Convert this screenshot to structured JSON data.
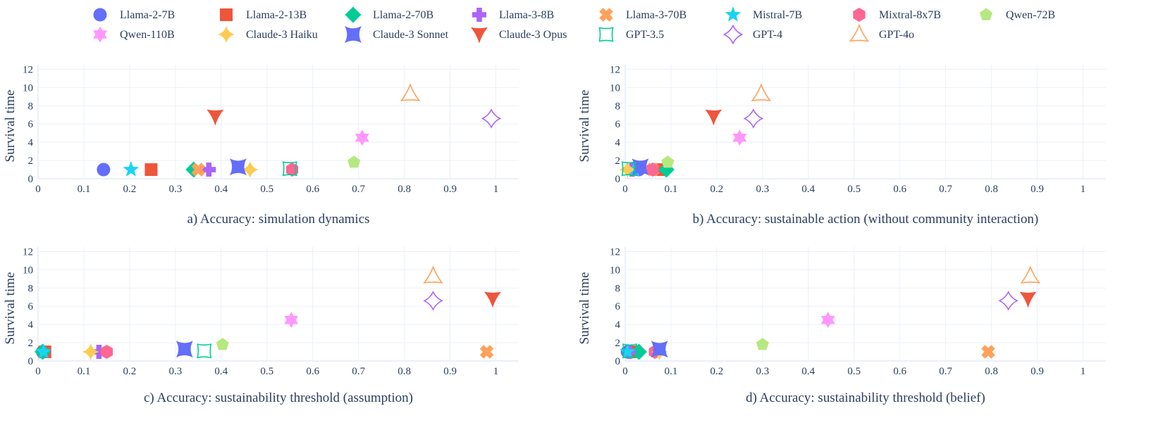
{
  "colors": {
    "Llama-2-7B": "#636efa",
    "Llama-2-13B": "#ef553b",
    "Llama-2-70B": "#00cc96",
    "Llama-3-8B": "#ab63fa",
    "Llama-3-70B": "#ffa15a",
    "Mistral-7B": "#19d3f3",
    "Mixtral-8x7B": "#ff6692",
    "Qwen-72B": "#b6e880",
    "Qwen-110B": "#ff97ff",
    "Claude-3 Haiku": "#fecb52",
    "Claude-3 Sonnet": "#636efa",
    "Claude-3 Opus": "#ef553b",
    "GPT-3.5": "#00cc96",
    "GPT-4": "#ab63fa",
    "GPT-4o": "#ffa15a"
  },
  "legend": [
    {
      "name": "Llama-2-7B",
      "symbol": "circle"
    },
    {
      "name": "Llama-2-13B",
      "symbol": "square"
    },
    {
      "name": "Llama-2-70B",
      "symbol": "diamond"
    },
    {
      "name": "Llama-3-8B",
      "symbol": "cross"
    },
    {
      "name": "Llama-3-70B",
      "symbol": "x"
    },
    {
      "name": "Mistral-7B",
      "symbol": "star5"
    },
    {
      "name": "Mixtral-8x7B",
      "symbol": "hexagon"
    },
    {
      "name": "Qwen-72B",
      "symbol": "pentagon"
    },
    {
      "name": "Qwen-110B",
      "symbol": "hexagram"
    },
    {
      "name": "Claude-3 Haiku",
      "symbol": "star4"
    },
    {
      "name": "Claude-3 Sonnet",
      "symbol": "hourglass"
    },
    {
      "name": "Claude-3 Opus",
      "symbol": "arrowdown"
    },
    {
      "name": "GPT-3.5",
      "symbol": "square-open"
    },
    {
      "name": "GPT-4",
      "symbol": "star4-open"
    },
    {
      "name": "GPT-4o",
      "symbol": "triangle-open"
    }
  ],
  "chart_data": [
    {
      "type": "scatter",
      "title": "a) Accuracy: simulation dynamics",
      "ylabel": "Survival time",
      "xlim": [
        0,
        1.05
      ],
      "ylim": [
        0,
        12.5
      ],
      "xticks": [
        0,
        0.1,
        0.2,
        0.3,
        0.4,
        0.5,
        0.6,
        0.7,
        0.8,
        0.9,
        1
      ],
      "yticks": [
        0,
        2,
        4,
        6,
        8,
        10,
        12
      ],
      "points": [
        {
          "series": "Llama-2-7B",
          "x": 0.143,
          "y": 1.0
        },
        {
          "series": "Llama-2-13B",
          "x": 0.247,
          "y": 1.0
        },
        {
          "series": "Llama-2-70B",
          "x": 0.34,
          "y": 1.0
        },
        {
          "series": "Llama-3-8B",
          "x": 0.373,
          "y": 1.0
        },
        {
          "series": "Llama-3-70B",
          "x": 0.35,
          "y": 1.0
        },
        {
          "series": "Mistral-7B",
          "x": 0.203,
          "y": 1.0
        },
        {
          "series": "Mixtral-8x7B",
          "x": 0.555,
          "y": 1.0
        },
        {
          "series": "Qwen-72B",
          "x": 0.69,
          "y": 1.8
        },
        {
          "series": "Qwen-110B",
          "x": 0.708,
          "y": 4.5
        },
        {
          "series": "Claude-3 Haiku",
          "x": 0.463,
          "y": 1.0
        },
        {
          "series": "Claude-3 Sonnet",
          "x": 0.437,
          "y": 1.3
        },
        {
          "series": "Claude-3 Opus",
          "x": 0.387,
          "y": 6.8
        },
        {
          "series": "GPT-3.5",
          "x": 0.55,
          "y": 1.1
        },
        {
          "series": "GPT-4",
          "x": 0.99,
          "y": 6.6
        },
        {
          "series": "GPT-4o",
          "x": 0.813,
          "y": 9.3
        }
      ]
    },
    {
      "type": "scatter",
      "title": "b) Accuracy: sustainable action (without community interaction)",
      "ylabel": "Survival time",
      "xlim": [
        0,
        1.05
      ],
      "ylim": [
        0,
        12.5
      ],
      "xticks": [
        0,
        0.1,
        0.2,
        0.3,
        0.4,
        0.5,
        0.6,
        0.7,
        0.8,
        0.9,
        1
      ],
      "yticks": [
        0,
        2,
        4,
        6,
        8,
        10,
        12
      ],
      "points": [
        {
          "series": "Llama-2-7B",
          "x": 0.03,
          "y": 1.0
        },
        {
          "series": "Llama-2-13B",
          "x": 0.075,
          "y": 1.0
        },
        {
          "series": "Llama-2-70B",
          "x": 0.09,
          "y": 1.0
        },
        {
          "series": "Llama-3-8B",
          "x": 0.015,
          "y": 1.0
        },
        {
          "series": "Llama-3-70B",
          "x": 0.06,
          "y": 1.0
        },
        {
          "series": "Mistral-7B",
          "x": 0.02,
          "y": 1.0
        },
        {
          "series": "Mixtral-8x7B",
          "x": 0.06,
          "y": 1.0
        },
        {
          "series": "Qwen-72B",
          "x": 0.093,
          "y": 1.8
        },
        {
          "series": "Qwen-110B",
          "x": 0.25,
          "y": 4.5
        },
        {
          "series": "Claude-3 Haiku",
          "x": 0.005,
          "y": 1.0
        },
        {
          "series": "Claude-3 Sonnet",
          "x": 0.033,
          "y": 1.3
        },
        {
          "series": "Claude-3 Opus",
          "x": 0.193,
          "y": 6.8
        },
        {
          "series": "GPT-3.5",
          "x": 0.008,
          "y": 1.1
        },
        {
          "series": "GPT-4",
          "x": 0.28,
          "y": 6.6
        },
        {
          "series": "GPT-4o",
          "x": 0.297,
          "y": 9.3
        }
      ]
    },
    {
      "type": "scatter",
      "title": "c) Accuracy: sustainability threshold (assumption)",
      "ylabel": "Survival time",
      "xlim": [
        0,
        1.05
      ],
      "ylim": [
        0,
        12.5
      ],
      "xticks": [
        0,
        0.1,
        0.2,
        0.3,
        0.4,
        0.5,
        0.6,
        0.7,
        0.8,
        0.9,
        1
      ],
      "yticks": [
        0,
        2,
        4,
        6,
        8,
        10,
        12
      ],
      "points": [
        {
          "series": "Llama-2-7B",
          "x": 0.01,
          "y": 1.0
        },
        {
          "series": "Llama-2-13B",
          "x": 0.015,
          "y": 1.0
        },
        {
          "series": "Llama-2-70B",
          "x": 0.01,
          "y": 1.0
        },
        {
          "series": "Llama-3-8B",
          "x": 0.133,
          "y": 1.0
        },
        {
          "series": "Llama-3-70B",
          "x": 0.98,
          "y": 1.0
        },
        {
          "series": "Mistral-7B",
          "x": 0.012,
          "y": 1.0
        },
        {
          "series": "Mixtral-8x7B",
          "x": 0.15,
          "y": 1.0
        },
        {
          "series": "Qwen-72B",
          "x": 0.403,
          "y": 1.8
        },
        {
          "series": "Qwen-110B",
          "x": 0.553,
          "y": 4.5
        },
        {
          "series": "Claude-3 Haiku",
          "x": 0.115,
          "y": 1.0
        },
        {
          "series": "Claude-3 Sonnet",
          "x": 0.32,
          "y": 1.3
        },
        {
          "series": "Claude-3 Opus",
          "x": 0.993,
          "y": 6.8
        },
        {
          "series": "GPT-3.5",
          "x": 0.363,
          "y": 1.1
        },
        {
          "series": "GPT-4",
          "x": 0.863,
          "y": 6.6
        },
        {
          "series": "GPT-4o",
          "x": 0.863,
          "y": 9.3
        }
      ]
    },
    {
      "type": "scatter",
      "title": "d) Accuracy: sustainability threshold (belief)",
      "ylabel": "Survival time",
      "xlim": [
        0,
        1.05
      ],
      "ylim": [
        0,
        12.5
      ],
      "xticks": [
        0,
        0.1,
        0.2,
        0.3,
        0.4,
        0.5,
        0.6,
        0.7,
        0.8,
        0.9,
        1
      ],
      "yticks": [
        0,
        2,
        4,
        6,
        8,
        10,
        12
      ],
      "points": [
        {
          "series": "Llama-2-7B",
          "x": 0.005,
          "y": 1.0
        },
        {
          "series": "Llama-2-13B",
          "x": 0.02,
          "y": 1.0
        },
        {
          "series": "Llama-2-70B",
          "x": 0.03,
          "y": 1.0
        },
        {
          "series": "Llama-3-8B",
          "x": 0.01,
          "y": 1.0
        },
        {
          "series": "Llama-3-70B",
          "x": 0.793,
          "y": 1.0
        },
        {
          "series": "Mistral-7B",
          "x": 0.005,
          "y": 1.0
        },
        {
          "series": "Mixtral-8x7B",
          "x": 0.065,
          "y": 1.0
        },
        {
          "series": "Qwen-72B",
          "x": 0.3,
          "y": 1.8
        },
        {
          "series": "Qwen-110B",
          "x": 0.443,
          "y": 4.5
        },
        {
          "series": "Claude-3 Haiku",
          "x": 0.075,
          "y": 1.0
        },
        {
          "series": "Claude-3 Sonnet",
          "x": 0.075,
          "y": 1.3
        },
        {
          "series": "Claude-3 Opus",
          "x": 0.88,
          "y": 6.8
        },
        {
          "series": "GPT-3.5",
          "x": 0.01,
          "y": 1.1
        },
        {
          "series": "GPT-4",
          "x": 0.837,
          "y": 6.6
        },
        {
          "series": "GPT-4o",
          "x": 0.885,
          "y": 9.3
        }
      ]
    }
  ]
}
